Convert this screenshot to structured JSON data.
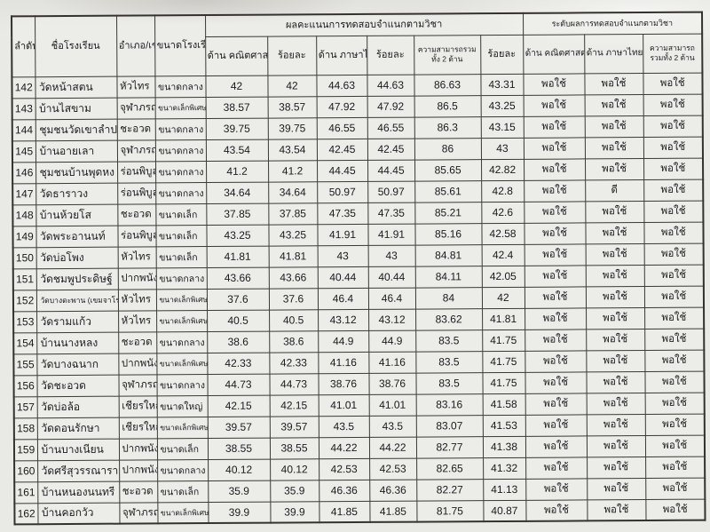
{
  "document": {
    "type": "scanned-score-table",
    "paper_color": "#e9e9e5",
    "line_color": "#3a3933"
  },
  "table": {
    "left_headers": [
      "ลำดับ",
      "ชื่อโรงเรียน",
      "อำเภอ/เขต",
      "ขนาดโรงเรียน"
    ],
    "groups": [
      {
        "label": "ผลคะแนนการทดสอบจำแนกตามวิชา",
        "cols": [
          "ด้าน คณิตศาสตร์",
          "ร้อยละ",
          "ด้าน ภาษาไทย",
          "ร้อยละ",
          "ความสามารถรวมทั้ง 2 ด้าน",
          "ร้อยละ"
        ]
      },
      {
        "label": "ระดับผลการทดสอบจำแนกตามวิชา",
        "cols": [
          "ด้าน คณิตศาสตร์",
          "ด้าน ภาษาไทย",
          "ความสามารถรวมทั้ง 2 ด้าน"
        ]
      }
    ],
    "rows": [
      [
        "142",
        "วัดหน้าสตน",
        "หัวไทร",
        "ขนาดกลาง",
        "42",
        "42",
        "44.63",
        "44.63",
        "86.63",
        "43.31",
        "พอใช้",
        "พอใช้",
        "พอใช้"
      ],
      [
        "143",
        "บ้านไสขาม",
        "จุฬาภรณ์",
        "ขนาดเล็กพิเศษ",
        "38.57",
        "38.57",
        "47.92",
        "47.92",
        "86.5",
        "43.25",
        "พอใช้",
        "พอใช้",
        "พอใช้"
      ],
      [
        "144",
        "ชุมชนวัดเขาลำปะ",
        "ชะอวด",
        "ขนาดกลาง",
        "39.75",
        "39.75",
        "46.55",
        "46.55",
        "86.3",
        "43.15",
        "พอใช้",
        "พอใช้",
        "พอใช้"
      ],
      [
        "145",
        "บ้านอายเลา",
        "จุฬาภรณ์",
        "ขนาดกลาง",
        "43.54",
        "43.54",
        "42.45",
        "42.45",
        "86",
        "43",
        "พอใช้",
        "พอใช้",
        "พอใช้"
      ],
      [
        "146",
        "ชุมชนบ้านพุดหง",
        "ร่อนพิบูลย์",
        "ขนาดกลาง",
        "41.2",
        "41.2",
        "44.45",
        "44.45",
        "85.65",
        "42.82",
        "พอใช้",
        "พอใช้",
        "พอใช้"
      ],
      [
        "147",
        "วัดธาราวง",
        "ร่อนพิบูลย์",
        "ขนาดกลาง",
        "34.64",
        "34.64",
        "50.97",
        "50.97",
        "85.61",
        "42.8",
        "พอใช้",
        "ดี",
        "พอใช้"
      ],
      [
        "148",
        "บ้านห้วยโส",
        "ชะอวด",
        "ขนาดเล็ก",
        "37.85",
        "37.85",
        "47.35",
        "47.35",
        "85.21",
        "42.6",
        "พอใช้",
        "พอใช้",
        "พอใช้"
      ],
      [
        "149",
        "วัดพระอานนท์",
        "ร่อนพิบูลย์",
        "ขนาดเล็ก",
        "43.25",
        "43.25",
        "41.91",
        "41.91",
        "85.16",
        "42.58",
        "พอใช้",
        "พอใช้",
        "พอใช้"
      ],
      [
        "150",
        "วัดบ่อโพง",
        "หัวไทร",
        "ขนาดเล็ก",
        "41.81",
        "41.81",
        "43",
        "43",
        "84.81",
        "42.4",
        "พอใช้",
        "พอใช้",
        "พอใช้"
      ],
      [
        "151",
        "วัดชมพูประดิษฐ์",
        "ปากพนัง",
        "ขนาดกลาง",
        "43.66",
        "43.66",
        "40.44",
        "40.44",
        "84.11",
        "42.05",
        "พอใช้",
        "พอใช้",
        "พอใช้"
      ],
      [
        "152",
        "วัดบางตะพาน (เขมจาโร)",
        "หัวไทร",
        "ขนาดเล็กพิเศษ",
        "37.6",
        "37.6",
        "46.4",
        "46.4",
        "84",
        "42",
        "พอใช้",
        "พอใช้",
        "พอใช้"
      ],
      [
        "153",
        "วัดรามแก้ว",
        "หัวไทร",
        "ขนาดเล็กพิเศษ",
        "40.5",
        "40.5",
        "43.12",
        "43.12",
        "83.62",
        "41.81",
        "พอใช้",
        "พอใช้",
        "พอใช้"
      ],
      [
        "154",
        "บ้านนางหลง",
        "ชะอวด",
        "ขนาดกลาง",
        "38.6",
        "38.6",
        "44.9",
        "44.9",
        "83.5",
        "41.75",
        "พอใช้",
        "พอใช้",
        "พอใช้"
      ],
      [
        "155",
        "วัดบางฉนาก",
        "ปากพนัง",
        "ขนาดเล็กพิเศษ",
        "42.33",
        "42.33",
        "41.16",
        "41.16",
        "83.5",
        "41.75",
        "พอใช้",
        "พอใช้",
        "พอใช้"
      ],
      [
        "156",
        "วัดชะอวด",
        "จุฬาภรณ์",
        "ขนาดกลาง",
        "44.73",
        "44.73",
        "38.76",
        "38.76",
        "83.5",
        "41.75",
        "พอใช้",
        "พอใช้",
        "พอใช้"
      ],
      [
        "157",
        "วัดบ่อล้อ",
        "เชียรใหญ่",
        "ขนาดใหญ่",
        "42.15",
        "42.15",
        "41.01",
        "41.01",
        "83.16",
        "41.58",
        "พอใช้",
        "พอใช้",
        "พอใช้"
      ],
      [
        "158",
        "วัดดอนรักษา",
        "เชียรใหญ่",
        "ขนาดเล็กพิเศษ",
        "39.57",
        "39.57",
        "43.5",
        "43.5",
        "83.07",
        "41.53",
        "พอใช้",
        "พอใช้",
        "พอใช้"
      ],
      [
        "159",
        "บ้านบางเนียน",
        "ปากพนัง",
        "ขนาดเล็ก",
        "38.55",
        "38.55",
        "44.22",
        "44.22",
        "82.77",
        "41.38",
        "พอใช้",
        "พอใช้",
        "พอใช้"
      ],
      [
        "160",
        "วัดศรีสุวรรณาราม",
        "ปากพนัง",
        "ขนาดกลาง",
        "40.12",
        "40.12",
        "42.53",
        "42.53",
        "82.65",
        "41.32",
        "พอใช้",
        "พอใช้",
        "พอใช้"
      ],
      [
        "161",
        "บ้านหนองนนทรี",
        "ชะอวด",
        "ขนาดเล็ก",
        "35.9",
        "35.9",
        "46.36",
        "46.36",
        "82.27",
        "41.13",
        "พอใช้",
        "พอใช้",
        "พอใช้"
      ],
      [
        "162",
        "บ้านคอกวัว",
        "จุฬาภรณ์",
        "ขนาดเล็กพิเศษ",
        "39.9",
        "39.9",
        "41.85",
        "41.85",
        "81.75",
        "40.87",
        "พอใช้",
        "พอใช้",
        "พอใช้"
      ]
    ]
  }
}
